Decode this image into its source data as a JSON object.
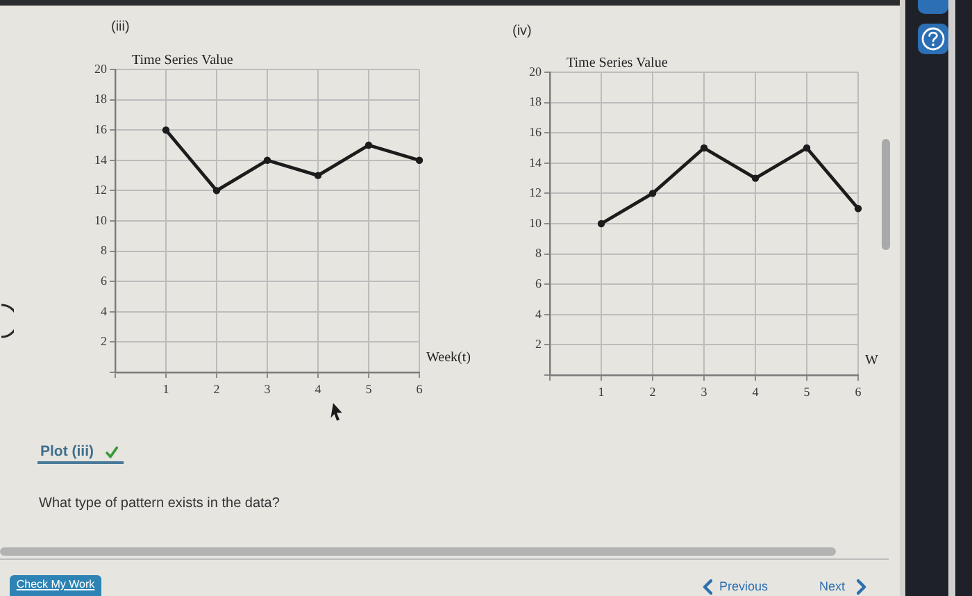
{
  "chart_data": [
    {
      "type": "line",
      "title": "(iii)",
      "ylabel": "Time Series Value",
      "xlabel": "Week(t)",
      "x": [
        1,
        2,
        3,
        4,
        5,
        6
      ],
      "values": [
        16,
        12,
        14,
        13,
        15,
        14
      ],
      "color": "#1c1c1c",
      "xlim": [
        0,
        6
      ],
      "xticks": [
        {
          "value": 0,
          "label": null
        },
        1,
        2,
        3,
        4,
        5,
        6
      ],
      "ylim": [
        0,
        20
      ],
      "yticks": [
        {
          "value": 0,
          "label": null
        },
        2,
        4,
        6,
        8,
        10,
        12,
        14,
        16,
        18,
        20
      ],
      "grid": true,
      "marker": "circle",
      "line_style": "solid"
    },
    {
      "type": "line",
      "title": "(iv)",
      "ylabel": "Time Series Value",
      "xlabel": "W",
      "x": [
        1,
        2,
        3,
        4,
        5,
        6
      ],
      "values": [
        10,
        12,
        15,
        13,
        15,
        11
      ],
      "color": "#1c1c1c",
      "xlim": [
        0,
        6
      ],
      "xticks": [
        {
          "value": 0,
          "label": null
        },
        1,
        2,
        3,
        4,
        5,
        6
      ],
      "ylim": [
        0,
        20
      ],
      "yticks": [
        {
          "value": 0,
          "label": null
        },
        2,
        4,
        6,
        8,
        10,
        12,
        14,
        16,
        18,
        20
      ],
      "grid": true,
      "marker": "circle",
      "line_style": "solid"
    },
    {
      "type": "other",
      "annotations": [
        "Plot (iii)",
        "What type of pattern exists in the data?",
        "Check My Work",
        "Previous",
        "Next"
      ]
    }
  ]
}
